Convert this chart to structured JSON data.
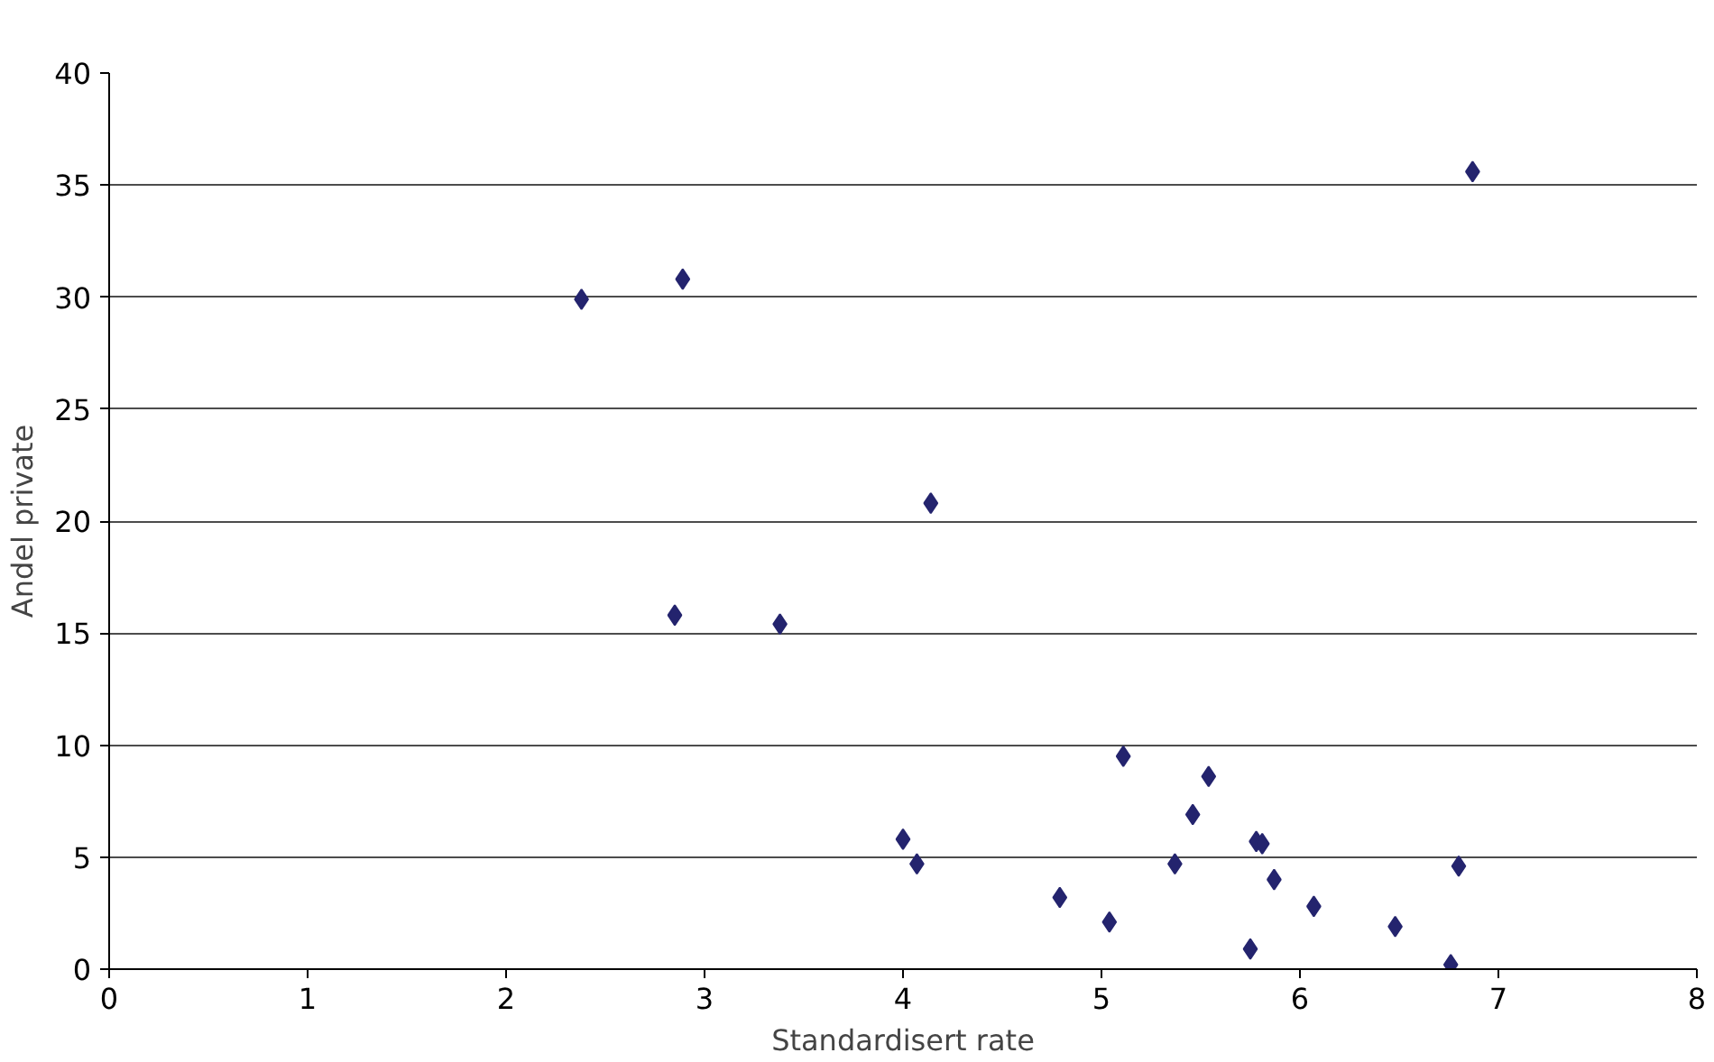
{
  "chart_data": {
    "type": "scatter",
    "xlabel": "Standardisert rate",
    "ylabel": "Andel private",
    "x": [
      2.38,
      2.89,
      6.87,
      4.14,
      2.85,
      3.38,
      4.0,
      4.07,
      4.79,
      5.04,
      5.11,
      5.37,
      5.46,
      5.54,
      5.75,
      5.78,
      5.81,
      5.87,
      6.07,
      6.48,
      6.76,
      6.8
    ],
    "values": [
      29.9,
      30.8,
      35.6,
      20.8,
      15.8,
      15.4,
      5.8,
      4.7,
      3.2,
      2.1,
      9.5,
      4.7,
      6.9,
      8.6,
      0.9,
      5.7,
      5.6,
      4.0,
      2.8,
      1.9,
      0.2,
      4.6
    ],
    "color": "#24246e",
    "marker": "diamond",
    "xlim": [
      0,
      8
    ],
    "xticks": [
      0,
      1,
      2,
      3,
      4,
      5,
      6,
      7,
      8
    ],
    "ylim": [
      0,
      40
    ],
    "yticks": [
      0,
      5,
      10,
      15,
      20,
      25,
      30,
      35,
      40
    ],
    "grid": "y",
    "legend": false
  }
}
